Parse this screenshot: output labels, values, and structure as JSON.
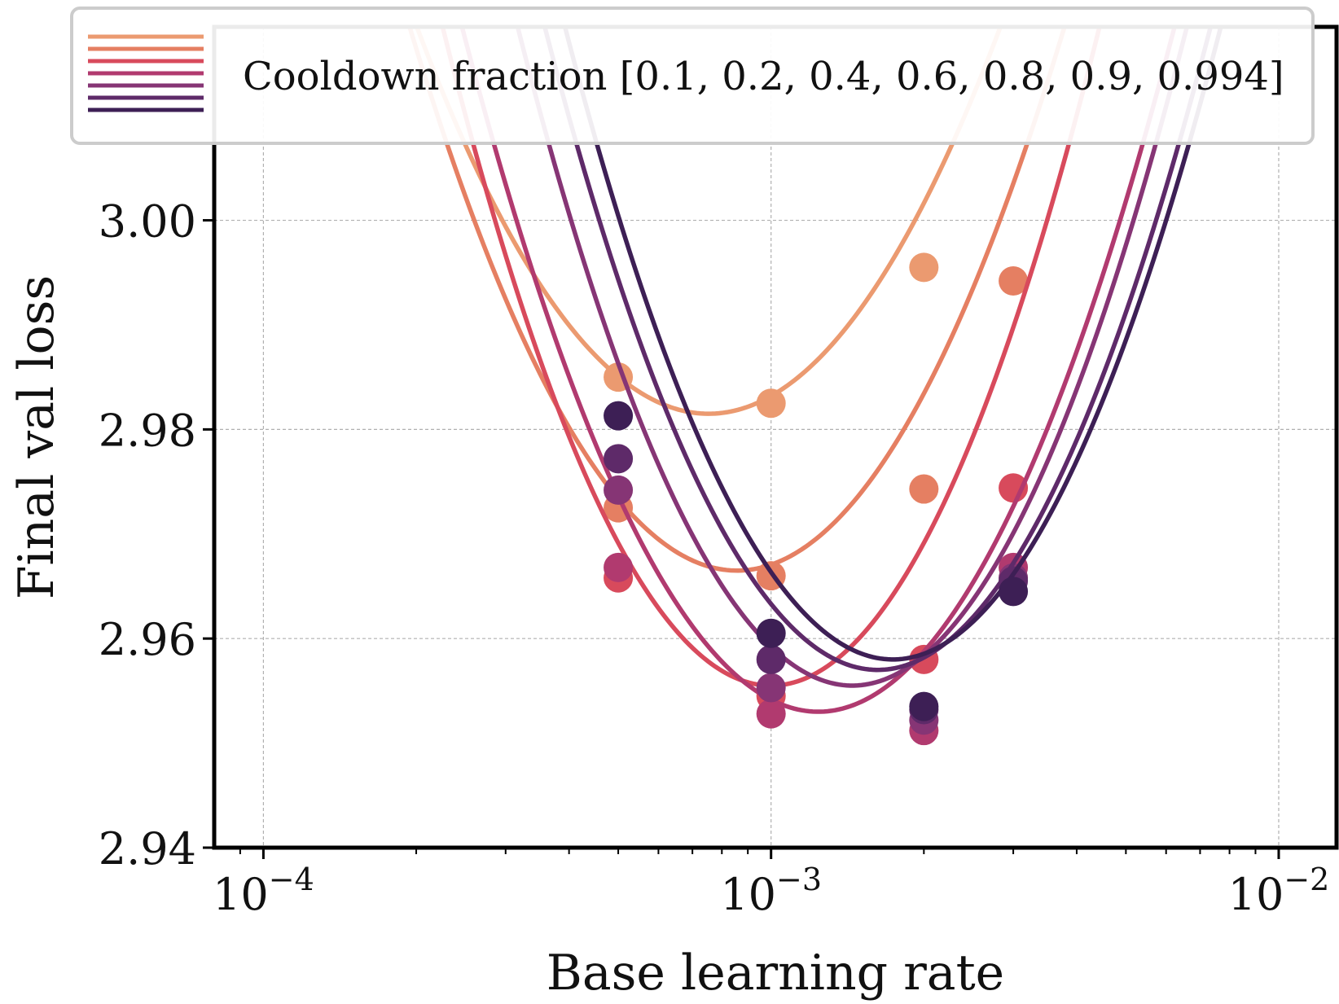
{
  "chart_data": {
    "type": "line",
    "title": "",
    "xlabel": "Base learning rate",
    "ylabel": "Final val loss",
    "xscale": "log",
    "xlim": [
      8e-05,
      0.013
    ],
    "ylim": [
      2.94,
      3.0185
    ],
    "x_ticks": [
      {
        "value": 0.0001,
        "base": "10",
        "exp": "−4"
      },
      {
        "value": 0.001,
        "base": "10",
        "exp": "−3"
      },
      {
        "value": 0.01,
        "base": "10",
        "exp": "−2"
      }
    ],
    "y_ticks": [
      {
        "value": 2.94,
        "label": "2.94"
      },
      {
        "value": 2.96,
        "label": "2.96"
      },
      {
        "value": 2.98,
        "label": "2.98"
      },
      {
        "value": 3.0,
        "label": "3.00"
      }
    ],
    "grid": true,
    "legend": {
      "location": "top",
      "label": "Cooldown fraction [0.1, 0.2, 0.4, 0.6, 0.8, 0.9, 0.994]"
    },
    "series": [
      {
        "name": "0.1",
        "color": "#eb9a70",
        "points": [
          {
            "x": 0.0005,
            "y": 2.985
          },
          {
            "x": 0.001,
            "y": 2.9825
          },
          {
            "x": 0.002,
            "y": 2.9955
          }
        ],
        "fit": {
          "log10_lr_min": -3.123,
          "loss_min": 2.9815,
          "curvature": 0.112
        }
      },
      {
        "name": "0.2",
        "color": "#e57f62",
        "points": [
          {
            "x": 0.0005,
            "y": 2.9725
          },
          {
            "x": 0.001,
            "y": 2.966
          },
          {
            "x": 0.002,
            "y": 2.9743
          },
          {
            "x": 0.003,
            "y": 2.9942
          }
        ],
        "fit": {
          "log10_lr_min": -3.067,
          "loss_min": 2.9665,
          "curvature": 0.125
        }
      },
      {
        "name": "0.4",
        "color": "#d84a5c",
        "points": [
          {
            "x": 0.0005,
            "y": 2.9658
          },
          {
            "x": 0.001,
            "y": 2.9545
          },
          {
            "x": 0.002,
            "y": 2.958
          },
          {
            "x": 0.003,
            "y": 2.9744
          }
        ],
        "fit": {
          "log10_lr_min": -3.0,
          "loss_min": 2.9555,
          "curvature": 0.1505
        }
      },
      {
        "name": "0.6",
        "color": "#b13a6f",
        "points": [
          {
            "x": 0.0005,
            "y": 2.9668
          },
          {
            "x": 0.001,
            "y": 2.9528
          },
          {
            "x": 0.002,
            "y": 2.9512
          },
          {
            "x": 0.003,
            "y": 2.9668
          }
        ],
        "fit": {
          "log10_lr_min": -2.907,
          "loss_min": 2.953,
          "curvature": 0.133
        }
      },
      {
        "name": "0.8",
        "color": "#863575",
        "points": [
          {
            "x": 0.0005,
            "y": 2.9742
          },
          {
            "x": 0.001,
            "y": 2.9553
          },
          {
            "x": 0.002,
            "y": 2.9522
          },
          {
            "x": 0.003,
            "y": 2.9658
          }
        ],
        "fit": {
          "log10_lr_min": -2.84,
          "loss_min": 2.9555,
          "curvature": 0.145
        }
      },
      {
        "name": "0.9",
        "color": "#5e2a69",
        "points": [
          {
            "x": 0.0005,
            "y": 2.9772
          },
          {
            "x": 0.001,
            "y": 2.958
          },
          {
            "x": 0.002,
            "y": 2.9532
          },
          {
            "x": 0.003,
            "y": 2.9655
          }
        ],
        "fit": {
          "log10_lr_min": -2.79,
          "loss_min": 2.957,
          "curvature": 0.143
        }
      },
      {
        "name": "0.994",
        "color": "#3d1f55",
        "points": [
          {
            "x": 0.0005,
            "y": 2.9813
          },
          {
            "x": 0.001,
            "y": 2.9605
          },
          {
            "x": 0.002,
            "y": 2.9535
          },
          {
            "x": 0.003,
            "y": 2.9645
          }
        ],
        "fit": {
          "log10_lr_min": -2.76,
          "loss_min": 2.958,
          "curvature": 0.145
        }
      }
    ]
  }
}
